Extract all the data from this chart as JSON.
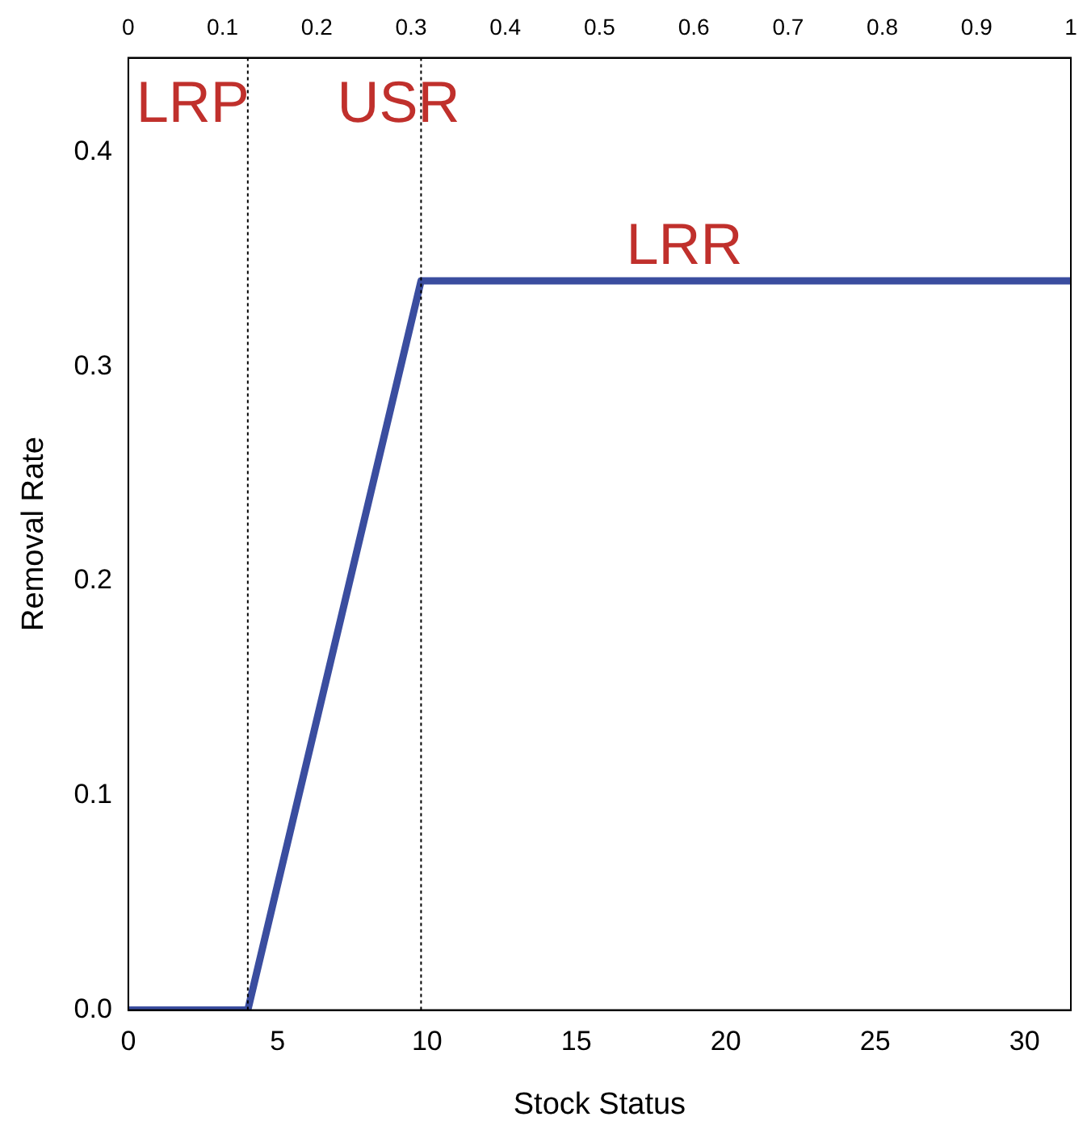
{
  "chart_data": {
    "type": "line",
    "xlabel": "Stock Status",
    "ylabel": "Removal Rate",
    "series": [
      {
        "color": "#3a4d9f",
        "x": [
          0,
          4,
          9.8,
          31.55
        ],
        "values": [
          0,
          0,
          0.34,
          0.34
        ]
      }
    ],
    "xlim": [
      0,
      31.55
    ],
    "xticks": [
      0,
      5,
      10,
      15,
      20,
      25,
      30
    ],
    "x2lim": [
      0,
      1
    ],
    "x2ticks": [
      0,
      0.1,
      0.2,
      0.3,
      0.4,
      0.5,
      0.6,
      0.7,
      0.8,
      0.9,
      1
    ],
    "ylim": [
      0,
      0.444
    ],
    "yticks": [
      {
        "value": 0,
        "label": "0.0"
      },
      {
        "value": 0.1,
        "label": "0.1"
      },
      {
        "value": 0.2,
        "label": "0.2"
      },
      {
        "value": 0.3,
        "label": "0.3"
      },
      {
        "value": 0.4,
        "label": "0.4"
      }
    ],
    "ref_lines": [
      {
        "axis": "x",
        "value": 4,
        "label": "LRP",
        "color": "#000000",
        "line_style": "dotted"
      },
      {
        "axis": "x",
        "value": 9.8,
        "label": "USR",
        "color": "#000000",
        "line_style": "dotted"
      }
    ],
    "annotations": [
      "LRR"
    ],
    "grid": false,
    "legend": false,
    "marker": "none",
    "line_style": "solid"
  }
}
